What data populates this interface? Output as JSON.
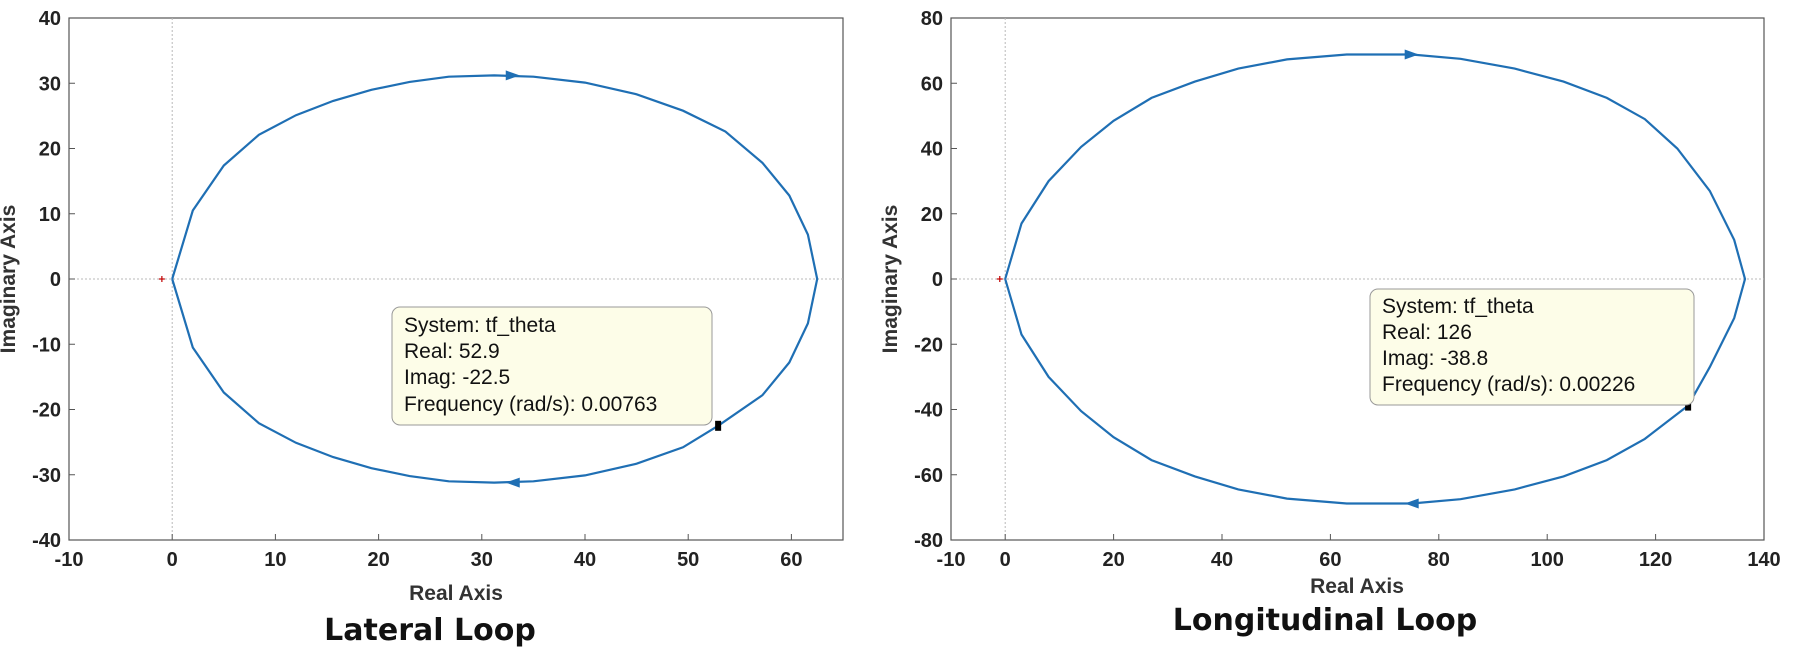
{
  "chart_data": [
    {
      "type": "line",
      "subtype": "nyquist",
      "caption": "Lateral Loop",
      "xlabel": "Real Axis",
      "ylabel": "Imaginary Axis",
      "xlim": [
        -10,
        65
      ],
      "ylim": [
        -40,
        40
      ],
      "xticks": [
        -10,
        0,
        10,
        20,
        30,
        40,
        50,
        60
      ],
      "yticks": [
        -40,
        -30,
        -20,
        -10,
        0,
        10,
        20,
        30,
        40
      ],
      "grid": "zero-lines",
      "series": [
        {
          "color": "#1f6fb4",
          "x": [
            0,
            2.0,
            5.0,
            8.4,
            12.0,
            15.6,
            19.3,
            23.0,
            26.8,
            31.2,
            35.0,
            40.0,
            45.0,
            49.5,
            53.6,
            57.2,
            59.8,
            61.6,
            62.5,
            61.6,
            59.8,
            57.2,
            52.9,
            49.5,
            45.0,
            40.0,
            35.0,
            31.2,
            26.8,
            23.0,
            19.3,
            15.6,
            12.0,
            8.4,
            5.0,
            2.0,
            0
          ],
          "y": [
            0,
            10.5,
            17.4,
            22.1,
            25.1,
            27.3,
            29.0,
            30.2,
            31.0,
            31.2,
            31.0,
            30.1,
            28.3,
            25.8,
            22.6,
            17.8,
            12.8,
            6.8,
            0,
            -6.8,
            -12.8,
            -17.8,
            -22.5,
            -25.8,
            -28.3,
            -30.1,
            -31.0,
            -31.2,
            -31.0,
            -30.2,
            -29.0,
            -27.3,
            -25.1,
            -22.1,
            -17.4,
            -10.5,
            0
          ]
        }
      ],
      "markers": [
        {
          "type": "cross",
          "x": -1,
          "y": 0,
          "color": "#c00000"
        },
        {
          "type": "datatip-point",
          "x": 52.9,
          "y": -22.5
        }
      ],
      "arrows": [
        {
          "x": 33,
          "y": 31.2,
          "direction": "right"
        },
        {
          "x": 33,
          "y": -31.2,
          "direction": "left"
        }
      ],
      "datatip": {
        "lines": [
          "System: tf_theta",
          "Real: 52.9",
          "Imag: -22.5",
          "Frequency (rad/s): 0.00763"
        ]
      }
    },
    {
      "type": "line",
      "subtype": "nyquist",
      "caption": "Longitudinal Loop",
      "xlabel": "Real Axis",
      "ylabel": "Imaginary Axis",
      "xlim": [
        -10,
        140
      ],
      "ylim": [
        -80,
        80
      ],
      "xticks": [
        -10,
        0,
        20,
        40,
        60,
        80,
        100,
        120,
        140
      ],
      "yticks": [
        -80,
        -60,
        -40,
        -20,
        0,
        20,
        40,
        60,
        80
      ],
      "grid": "zero-lines",
      "series": [
        {
          "color": "#1f6fb4",
          "x": [
            0,
            3.0,
            8.0,
            14.0,
            20.0,
            27.0,
            35.0,
            43.0,
            52.0,
            63.0,
            75.0,
            84.0,
            94.0,
            103.0,
            111.0,
            118.0,
            124.0,
            130.0,
            134.5,
            136.5,
            134.5,
            130.0,
            126.0,
            118.0,
            111.0,
            103.0,
            94.0,
            84.0,
            75.0,
            63.0,
            52.0,
            43.0,
            35.0,
            27.0,
            20.0,
            14.0,
            8.0,
            3.0,
            0
          ],
          "y": [
            0,
            17.0,
            30.0,
            40.5,
            48.5,
            55.5,
            60.5,
            64.5,
            67.3,
            68.8,
            68.8,
            67.5,
            64.5,
            60.5,
            55.5,
            49.0,
            40.0,
            27.0,
            12.0,
            0,
            -12.0,
            -27.0,
            -38.8,
            -49.0,
            -55.5,
            -60.5,
            -64.5,
            -67.5,
            -68.8,
            -68.8,
            -67.3,
            -64.5,
            -60.5,
            -55.5,
            -48.5,
            -40.5,
            -30.0,
            -17.0,
            0
          ]
        }
      ],
      "markers": [
        {
          "type": "cross",
          "x": -1,
          "y": 0,
          "color": "#c00000"
        },
        {
          "type": "datatip-point",
          "x": 126,
          "y": -38.8
        }
      ],
      "arrows": [
        {
          "x": 75,
          "y": 68.8,
          "direction": "right"
        },
        {
          "x": 75,
          "y": -68.8,
          "direction": "left"
        }
      ],
      "datatip": {
        "lines": [
          "System: tf_theta",
          "Real: 126",
          "Imag: -38.8",
          "Frequency (rad/s): 0.00226"
        ]
      }
    }
  ]
}
